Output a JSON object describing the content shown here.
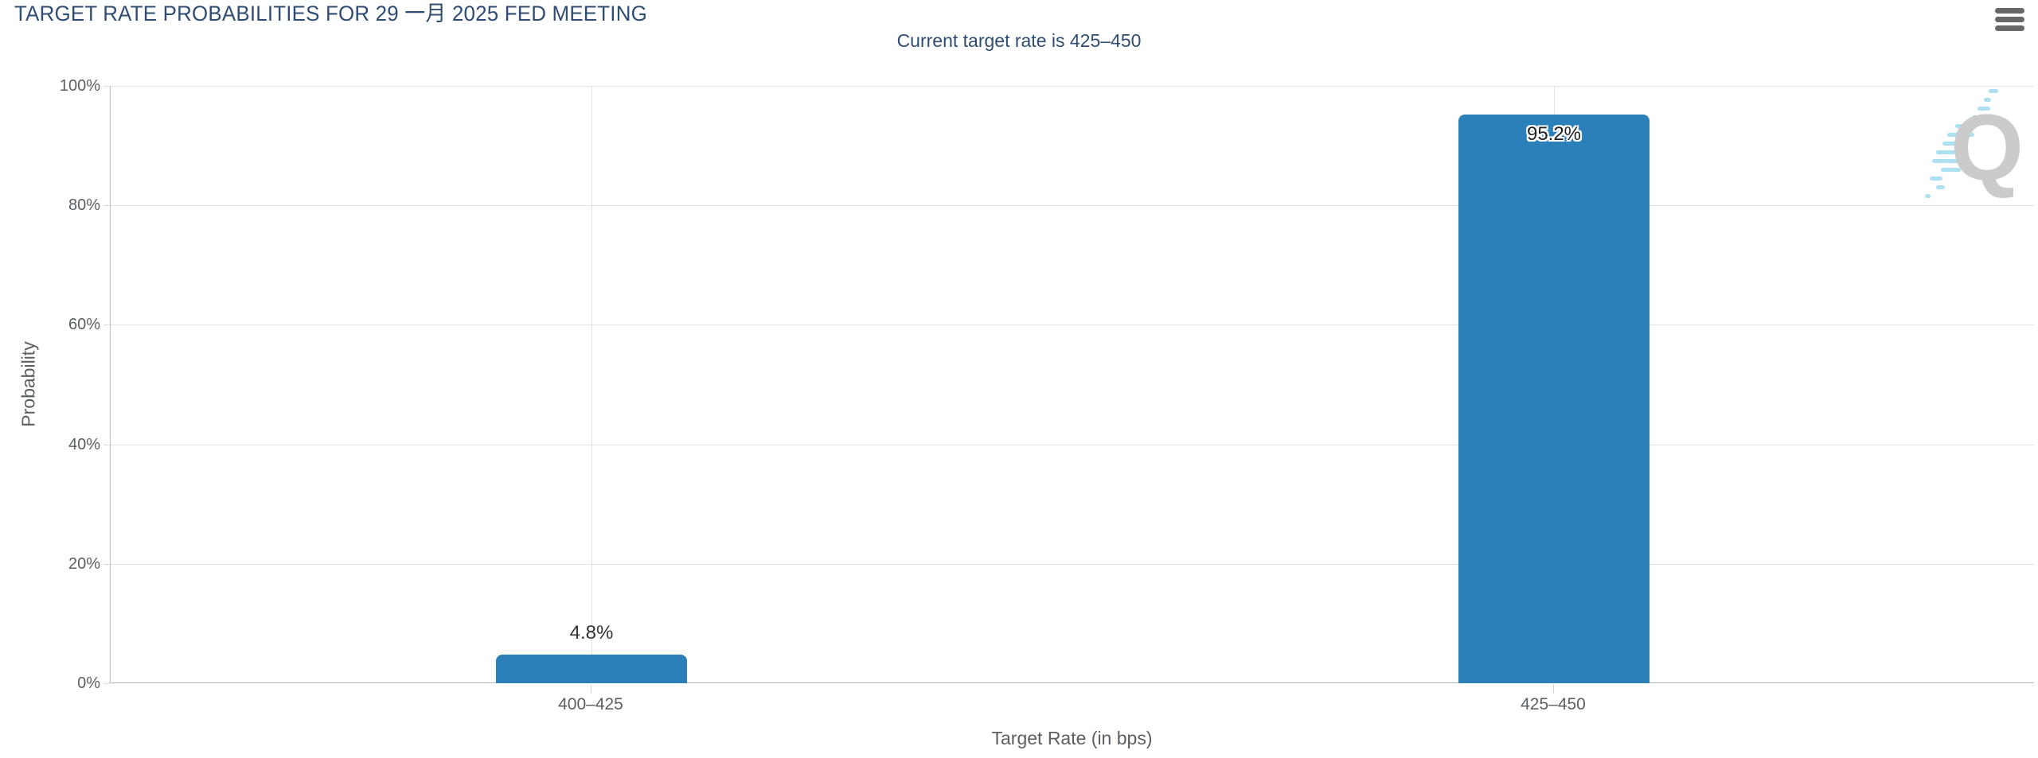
{
  "header": {
    "title": "TARGET RATE PROBABILITIES FOR 29 一月 2025 FED MEETING",
    "subtitle": "Current target rate is 425–450"
  },
  "menu": {
    "icon": "hamburger-icon",
    "lines": 3
  },
  "chart_data": {
    "type": "bar",
    "title": "TARGET RATE PROBABILITIES FOR 29 一月 2025 FED MEETING",
    "subtitle": "Current target rate is 425–450",
    "categories": [
      "400–425",
      "425–450"
    ],
    "values": [
      4.8,
      95.2
    ],
    "value_labels": [
      "4.8%",
      "95.2%"
    ],
    "xlabel": "Target Rate (in bps)",
    "ylabel": "Probability",
    "ylim": [
      0,
      100
    ],
    "yticks": [
      0,
      20,
      40,
      60,
      80,
      100
    ],
    "ytick_labels": [
      "0%",
      "20%",
      "40%",
      "60%",
      "80%",
      "100%"
    ],
    "grid": true,
    "legend_position": "none",
    "bar_color": "#2b80b9"
  },
  "colors": {
    "title": "#2f4d73",
    "axis_text": "#5a5f63",
    "gridline": "#e2e2e2",
    "axis_line": "#b9bcc0",
    "bar": "#2b80b9",
    "menu_icon": "#67686a",
    "watermark_gray": "#c9c9c9",
    "watermark_blue": "#a9dff0"
  },
  "watermark": {
    "letter": "Q"
  }
}
